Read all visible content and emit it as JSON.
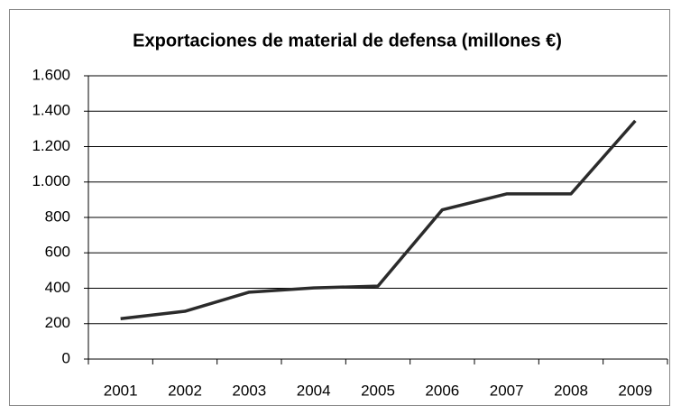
{
  "chart_data": {
    "type": "line",
    "title": "Exportaciones de material de defensa (millones €)",
    "categories": [
      "2001",
      "2002",
      "2003",
      "2004",
      "2005",
      "2006",
      "2007",
      "2008",
      "2009"
    ],
    "values": [
      228,
      270,
      378,
      402,
      412,
      843,
      933,
      933,
      1346
    ],
    "color": "#2b2b2b",
    "ylim": [
      0,
      1600
    ],
    "yticks": [
      0,
      200,
      400,
      600,
      800,
      {
        "value": 1000,
        "label": "1.000"
      },
      {
        "value": 1200,
        "label": "1.200"
      },
      {
        "value": 1400,
        "label": "1.400"
      },
      {
        "value": 1600,
        "label": "1.600"
      }
    ],
    "grid": true
  }
}
